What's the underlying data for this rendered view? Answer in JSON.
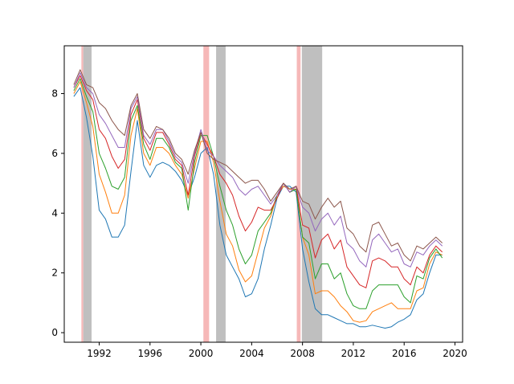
{
  "chart_data": {
    "type": "line",
    "title": "",
    "xlabel": "",
    "ylabel": "",
    "xlim": [
      1989.25,
      2020.6
    ],
    "ylim": [
      -0.32,
      9.6
    ],
    "grid": false,
    "x_ticks": [
      1992,
      1996,
      2000,
      2004,
      2008,
      2012,
      2016,
      2020
    ],
    "y_ticks": [
      0,
      2,
      4,
      6,
      8
    ],
    "shaded_regions": [
      {
        "kind": "red",
        "color": "#f4a6a6",
        "x0": 1990.6,
        "x1": 1990.75
      },
      {
        "kind": "grey",
        "color": "#bfbfbf",
        "x0": 1990.75,
        "x1": 1991.4
      },
      {
        "kind": "red",
        "color": "#f4a6a6",
        "x0": 2000.2,
        "x1": 2000.65
      },
      {
        "kind": "grey",
        "color": "#bfbfbf",
        "x0": 2001.2,
        "x1": 2001.95
      },
      {
        "kind": "red",
        "color": "#f4a6a6",
        "x0": 2007.55,
        "x1": 2007.85
      },
      {
        "kind": "grey",
        "color": "#bfbfbf",
        "x0": 2007.95,
        "x1": 2009.55
      }
    ],
    "x": [
      1990.0,
      1990.5,
      1991.0,
      1991.5,
      1992.0,
      1992.5,
      1993.0,
      1993.5,
      1994.0,
      1994.5,
      1995.0,
      1995.5,
      1996.0,
      1996.5,
      1997.0,
      1997.5,
      1998.0,
      1998.5,
      1999.0,
      1999.5,
      2000.0,
      2000.5,
      2001.0,
      2001.5,
      2002.0,
      2002.5,
      2003.0,
      2003.5,
      2004.0,
      2004.5,
      2005.0,
      2005.5,
      2006.0,
      2006.5,
      2007.0,
      2007.5,
      2008.0,
      2008.5,
      2009.0,
      2009.5,
      2010.0,
      2010.5,
      2011.0,
      2011.5,
      2012.0,
      2012.5,
      2013.0,
      2013.5,
      2014.0,
      2014.5,
      2015.0,
      2015.5,
      2016.0,
      2016.5,
      2017.0,
      2017.5,
      2018.0,
      2018.5,
      2019.0
    ],
    "series": [
      {
        "color": "#1f77b4",
        "values": [
          7.9,
          8.2,
          7.2,
          5.9,
          4.1,
          3.8,
          3.2,
          3.2,
          3.6,
          5.4,
          7.1,
          5.6,
          5.2,
          5.6,
          5.7,
          5.6,
          5.4,
          5.1,
          4.6,
          5.2,
          6.0,
          6.2,
          5.3,
          3.6,
          2.6,
          2.2,
          1.8,
          1.2,
          1.3,
          1.8,
          2.8,
          3.6,
          4.5,
          4.9,
          4.9,
          4.7,
          2.8,
          1.7,
          0.8,
          0.6,
          0.6,
          0.5,
          0.4,
          0.3,
          0.3,
          0.2,
          0.2,
          0.25,
          0.2,
          0.15,
          0.2,
          0.35,
          0.45,
          0.6,
          1.1,
          1.3,
          2.0,
          2.6,
          2.6
        ]
      },
      {
        "color": "#ff7f0e",
        "values": [
          8.0,
          8.4,
          7.7,
          6.9,
          5.3,
          4.7,
          4.0,
          4.0,
          4.6,
          6.6,
          7.5,
          6.0,
          5.6,
          6.2,
          6.2,
          6.0,
          5.6,
          5.3,
          4.5,
          5.5,
          6.4,
          6.4,
          5.7,
          4.4,
          3.3,
          2.9,
          2.1,
          1.7,
          1.9,
          2.7,
          3.5,
          3.9,
          4.6,
          4.9,
          4.8,
          4.8,
          3.2,
          2.6,
          1.3,
          1.4,
          1.4,
          1.2,
          0.9,
          0.7,
          0.4,
          0.35,
          0.4,
          0.7,
          0.8,
          0.9,
          1.0,
          0.8,
          0.8,
          0.8,
          1.4,
          1.5,
          2.3,
          2.7,
          2.6
        ]
      },
      {
        "color": "#2ca02c",
        "values": [
          8.1,
          8.5,
          7.9,
          7.4,
          6.0,
          5.5,
          4.9,
          4.8,
          5.2,
          7.1,
          7.6,
          6.3,
          5.8,
          6.5,
          6.5,
          6.2,
          5.7,
          5.5,
          4.1,
          5.7,
          6.6,
          6.6,
          5.9,
          4.9,
          4.1,
          3.6,
          2.8,
          2.3,
          2.6,
          3.4,
          3.7,
          4.0,
          4.6,
          5.0,
          4.7,
          4.8,
          3.2,
          3.0,
          1.8,
          2.3,
          2.3,
          1.8,
          2.0,
          1.3,
          0.9,
          0.8,
          0.8,
          1.4,
          1.6,
          1.6,
          1.6,
          1.6,
          1.2,
          1.0,
          1.9,
          1.8,
          2.5,
          2.8,
          2.5
        ]
      },
      {
        "color": "#d62728",
        "values": [
          8.2,
          8.6,
          8.1,
          7.8,
          6.8,
          6.5,
          5.9,
          5.5,
          5.8,
          7.3,
          7.8,
          6.5,
          6.1,
          6.7,
          6.7,
          6.3,
          5.8,
          5.6,
          4.6,
          5.9,
          6.7,
          6.3,
          5.9,
          5.3,
          5.0,
          4.6,
          3.9,
          3.4,
          3.7,
          4.2,
          4.1,
          4.1,
          4.5,
          5.0,
          4.7,
          4.9,
          3.6,
          3.5,
          2.5,
          3.1,
          3.3,
          2.8,
          3.1,
          2.2,
          1.9,
          1.6,
          1.5,
          2.4,
          2.5,
          2.4,
          2.2,
          2.2,
          1.8,
          1.6,
          2.2,
          2.0,
          2.6,
          2.9,
          2.7
        ]
      },
      {
        "color": "#9467bd",
        "values": [
          8.2,
          8.7,
          8.2,
          8.0,
          7.3,
          7.0,
          6.6,
          6.2,
          6.2,
          7.5,
          7.9,
          6.6,
          6.3,
          6.8,
          6.8,
          6.4,
          5.9,
          5.7,
          5.0,
          6.0,
          6.8,
          6.1,
          5.9,
          5.6,
          5.4,
          5.2,
          4.8,
          4.6,
          4.8,
          4.9,
          4.6,
          4.3,
          4.6,
          5.0,
          4.7,
          4.9,
          4.2,
          4.0,
          3.4,
          3.8,
          4.0,
          3.6,
          3.9,
          3.0,
          2.8,
          2.4,
          2.2,
          3.1,
          3.3,
          3.0,
          2.7,
          2.8,
          2.3,
          2.2,
          2.7,
          2.6,
          2.9,
          3.1,
          2.9
        ]
      },
      {
        "color": "#8c564b",
        "values": [
          8.3,
          8.8,
          8.3,
          8.2,
          7.7,
          7.5,
          7.1,
          6.8,
          6.6,
          7.6,
          8.0,
          6.8,
          6.5,
          6.9,
          6.8,
          6.5,
          6.0,
          5.8,
          5.3,
          6.1,
          6.7,
          6.0,
          5.8,
          5.7,
          5.6,
          5.4,
          5.2,
          5.0,
          5.1,
          5.1,
          4.8,
          4.4,
          4.7,
          5.0,
          4.8,
          4.9,
          4.4,
          4.3,
          3.8,
          4.2,
          4.5,
          4.2,
          4.4,
          3.5,
          3.3,
          2.9,
          2.7,
          3.6,
          3.7,
          3.3,
          2.9,
          3.0,
          2.6,
          2.4,
          2.9,
          2.8,
          3.0,
          3.2,
          3.0
        ]
      }
    ]
  }
}
